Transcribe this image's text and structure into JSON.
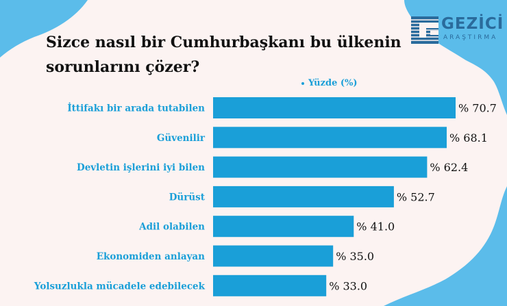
{
  "title": "Sizce nasıl bir Cumhurbaşkanı bu ülkenin sorunlarını çözer?",
  "brand": {
    "name": "GEZİCİ",
    "sub": "ARAŞTIRMA"
  },
  "colors": {
    "bar": "#1a9fd8",
    "label": "#1a9fd8",
    "background": "#fcf3f2",
    "brand": "#2a6b9c"
  },
  "chart_data": {
    "type": "bar",
    "orientation": "horizontal",
    "categories": [
      "İttifakı bir arada tutabilen",
      "Güvenilir",
      "Devletin işlerini iyi bilen",
      "Dürüst",
      "Adil olabilen",
      "Ekonomiden anlayan",
      "Yolsuzlukla mücadele edebilecek"
    ],
    "series": [
      {
        "name": "Yüzde (%)",
        "values": [
          70.7,
          68.1,
          62.4,
          52.7,
          41.0,
          35.0,
          33.0
        ]
      }
    ],
    "value_labels": [
      "% 70.7",
      "% 68.1",
      "% 62.4",
      "% 52.7",
      "% 41.0",
      "% 35.0",
      "% 33.0"
    ],
    "title": "Sizce nasıl bir Cumhurbaşkanı bu ülkenin sorunlarını çözer?",
    "legend": "top",
    "grid": false,
    "xlim": [
      0,
      70.7
    ]
  }
}
